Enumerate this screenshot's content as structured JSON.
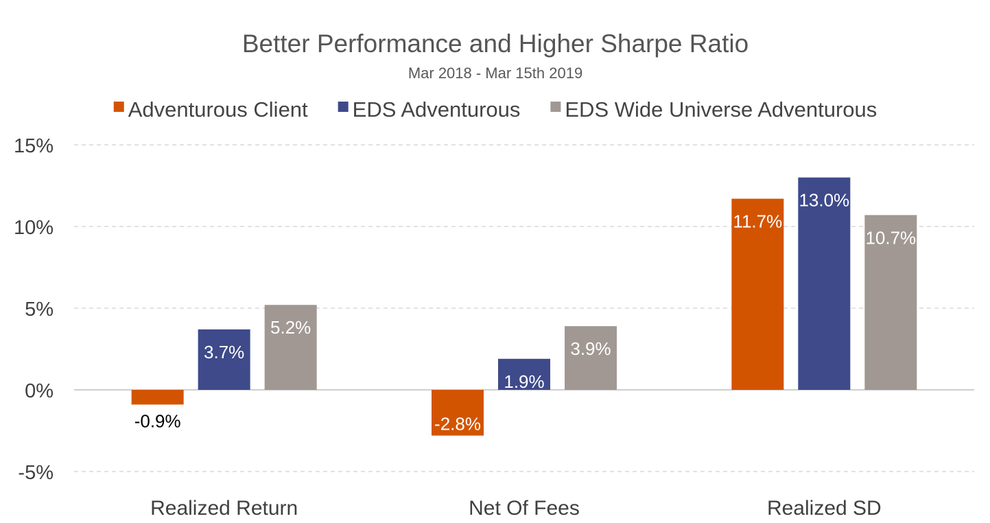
{
  "chart_data": {
    "type": "bar",
    "title": "Better Performance and Higher Sharpe Ratio",
    "subtitle": "Mar 2018 - Mar 15th 2019",
    "categories": [
      "Realized Return",
      "Net Of Fees",
      "Realized SD"
    ],
    "series": [
      {
        "name": "Adventurous Client",
        "color": "#D35400",
        "values": [
          -0.9,
          -2.8,
          11.7
        ],
        "labels": [
          "-0.9%",
          "-2.8%",
          "11.7%"
        ]
      },
      {
        "name": "EDS Adventurous",
        "color": "#3E4A8A",
        "values": [
          3.7,
          1.9,
          13.0
        ],
        "labels": [
          "3.7%",
          "1.9%",
          "13.0%"
        ]
      },
      {
        "name": "EDS Wide Universe Adventurous",
        "color": "#A19893",
        "values": [
          5.2,
          3.9,
          10.7
        ],
        "labels": [
          "5.2%",
          "3.9%",
          "10.7%"
        ]
      }
    ],
    "ylim": [
      -5,
      15
    ],
    "yticks": [
      -5,
      0,
      5,
      10,
      15
    ],
    "ytick_labels": [
      "-5%",
      "0%",
      "5%",
      "10%",
      "15%"
    ],
    "xlabel": "",
    "ylabel": "",
    "grid": true,
    "legend": "top"
  }
}
